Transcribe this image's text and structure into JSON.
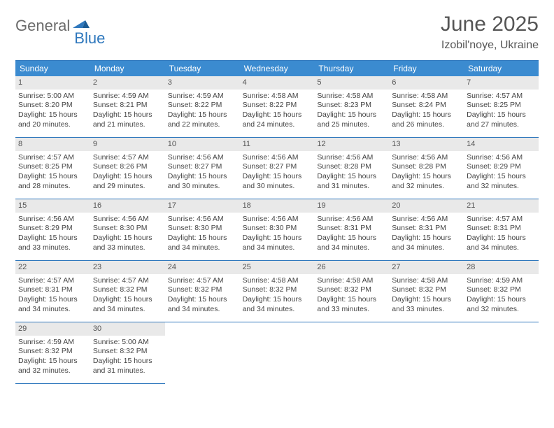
{
  "logo": {
    "part1": "General",
    "part2": "Blue"
  },
  "title": "June 2025",
  "location": "Izobil'noye, Ukraine",
  "colors": {
    "header_bg": "#3b8bd0",
    "border": "#2f78bd",
    "daynum_bg": "#e9e9e9",
    "text": "#444444",
    "title_text": "#555555"
  },
  "weekdays": [
    "Sunday",
    "Monday",
    "Tuesday",
    "Wednesday",
    "Thursday",
    "Friday",
    "Saturday"
  ],
  "days": [
    {
      "n": 1,
      "sunrise": "5:00 AM",
      "sunset": "8:20 PM",
      "daylight": "15 hours and 20 minutes."
    },
    {
      "n": 2,
      "sunrise": "4:59 AM",
      "sunset": "8:21 PM",
      "daylight": "15 hours and 21 minutes."
    },
    {
      "n": 3,
      "sunrise": "4:59 AM",
      "sunset": "8:22 PM",
      "daylight": "15 hours and 22 minutes."
    },
    {
      "n": 4,
      "sunrise": "4:58 AM",
      "sunset": "8:22 PM",
      "daylight": "15 hours and 24 minutes."
    },
    {
      "n": 5,
      "sunrise": "4:58 AM",
      "sunset": "8:23 PM",
      "daylight": "15 hours and 25 minutes."
    },
    {
      "n": 6,
      "sunrise": "4:58 AM",
      "sunset": "8:24 PM",
      "daylight": "15 hours and 26 minutes."
    },
    {
      "n": 7,
      "sunrise": "4:57 AM",
      "sunset": "8:25 PM",
      "daylight": "15 hours and 27 minutes."
    },
    {
      "n": 8,
      "sunrise": "4:57 AM",
      "sunset": "8:25 PM",
      "daylight": "15 hours and 28 minutes."
    },
    {
      "n": 9,
      "sunrise": "4:57 AM",
      "sunset": "8:26 PM",
      "daylight": "15 hours and 29 minutes."
    },
    {
      "n": 10,
      "sunrise": "4:56 AM",
      "sunset": "8:27 PM",
      "daylight": "15 hours and 30 minutes."
    },
    {
      "n": 11,
      "sunrise": "4:56 AM",
      "sunset": "8:27 PM",
      "daylight": "15 hours and 30 minutes."
    },
    {
      "n": 12,
      "sunrise": "4:56 AM",
      "sunset": "8:28 PM",
      "daylight": "15 hours and 31 minutes."
    },
    {
      "n": 13,
      "sunrise": "4:56 AM",
      "sunset": "8:28 PM",
      "daylight": "15 hours and 32 minutes."
    },
    {
      "n": 14,
      "sunrise": "4:56 AM",
      "sunset": "8:29 PM",
      "daylight": "15 hours and 32 minutes."
    },
    {
      "n": 15,
      "sunrise": "4:56 AM",
      "sunset": "8:29 PM",
      "daylight": "15 hours and 33 minutes."
    },
    {
      "n": 16,
      "sunrise": "4:56 AM",
      "sunset": "8:30 PM",
      "daylight": "15 hours and 33 minutes."
    },
    {
      "n": 17,
      "sunrise": "4:56 AM",
      "sunset": "8:30 PM",
      "daylight": "15 hours and 34 minutes."
    },
    {
      "n": 18,
      "sunrise": "4:56 AM",
      "sunset": "8:30 PM",
      "daylight": "15 hours and 34 minutes."
    },
    {
      "n": 19,
      "sunrise": "4:56 AM",
      "sunset": "8:31 PM",
      "daylight": "15 hours and 34 minutes."
    },
    {
      "n": 20,
      "sunrise": "4:56 AM",
      "sunset": "8:31 PM",
      "daylight": "15 hours and 34 minutes."
    },
    {
      "n": 21,
      "sunrise": "4:57 AM",
      "sunset": "8:31 PM",
      "daylight": "15 hours and 34 minutes."
    },
    {
      "n": 22,
      "sunrise": "4:57 AM",
      "sunset": "8:31 PM",
      "daylight": "15 hours and 34 minutes."
    },
    {
      "n": 23,
      "sunrise": "4:57 AM",
      "sunset": "8:32 PM",
      "daylight": "15 hours and 34 minutes."
    },
    {
      "n": 24,
      "sunrise": "4:57 AM",
      "sunset": "8:32 PM",
      "daylight": "15 hours and 34 minutes."
    },
    {
      "n": 25,
      "sunrise": "4:58 AM",
      "sunset": "8:32 PM",
      "daylight": "15 hours and 34 minutes."
    },
    {
      "n": 26,
      "sunrise": "4:58 AM",
      "sunset": "8:32 PM",
      "daylight": "15 hours and 33 minutes."
    },
    {
      "n": 27,
      "sunrise": "4:58 AM",
      "sunset": "8:32 PM",
      "daylight": "15 hours and 33 minutes."
    },
    {
      "n": 28,
      "sunrise": "4:59 AM",
      "sunset": "8:32 PM",
      "daylight": "15 hours and 32 minutes."
    },
    {
      "n": 29,
      "sunrise": "4:59 AM",
      "sunset": "8:32 PM",
      "daylight": "15 hours and 32 minutes."
    },
    {
      "n": 30,
      "sunrise": "5:00 AM",
      "sunset": "8:32 PM",
      "daylight": "15 hours and 31 minutes."
    }
  ],
  "labels": {
    "sunrise": "Sunrise:",
    "sunset": "Sunset:",
    "daylight": "Daylight:"
  },
  "grid": {
    "total_cells": 35,
    "start_offset": 0
  }
}
